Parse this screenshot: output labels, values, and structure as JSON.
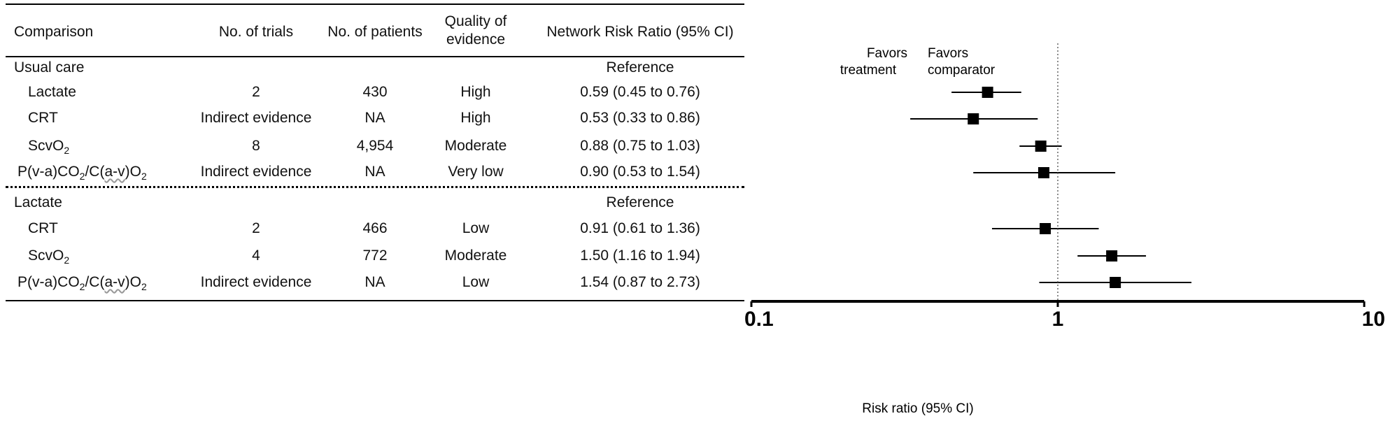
{
  "table": {
    "headers": {
      "comparison": "Comparison",
      "trials": "No. of trials",
      "patients": "No. of patients",
      "quality_line1": "Quality of",
      "quality_line2": "evidence",
      "rr": "Network Risk Ratio (95% CI)"
    },
    "groups": [
      {
        "reference_label": "Usual care",
        "reference_value": "Reference",
        "rows": [
          {
            "label": "Lactate",
            "trials": "2",
            "patients": "430",
            "quality": "High",
            "rr": "0.59 (0.45 to 0.76)"
          },
          {
            "label": "CRT",
            "trials": "Indirect evidence",
            "patients": "NA",
            "quality": "High",
            "rr": "0.53 (0.33 to 0.86)"
          },
          {
            "label_pre": "ScvO",
            "label_sub": "2",
            "trials": "8",
            "patients": "4,954",
            "quality": "Moderate",
            "rr": "0.88 (0.75 to 1.03)"
          },
          {
            "label_a": "P(v-a)CO",
            "label_a_sub": "2",
            "label_b": "/C(",
            "label_c": "a-v",
            "label_d": ")O",
            "label_d_sub": "2",
            "trials": "Indirect evidence",
            "patients": "NA",
            "quality": "Very low",
            "rr": "0.90 (0.53 to 1.54)"
          }
        ]
      },
      {
        "reference_label": "Lactate",
        "reference_value": "Reference",
        "rows": [
          {
            "label": "CRT",
            "trials": "2",
            "patients": "466",
            "quality": "Low",
            "rr": "0.91 (0.61 to 1.36)"
          },
          {
            "label_pre": "ScvO",
            "label_sub": "2",
            "trials": "4",
            "patients": "772",
            "quality": "Moderate",
            "rr": "1.50 (1.16 to 1.94)"
          },
          {
            "label_a": "P(v-a)CO",
            "label_a_sub": "2",
            "label_b": "/C(",
            "label_c": "a-v",
            "label_d": ")O",
            "label_d_sub": "2",
            "trials": "Indirect evidence",
            "patients": "NA",
            "quality": "Low",
            "rr": "1.54 (0.87 to 2.73)"
          }
        ]
      }
    ]
  },
  "chart_data": {
    "type": "scatter",
    "xscale": "log",
    "xlim": [
      0.1,
      10
    ],
    "xticks": [
      "0.1",
      "1",
      "10"
    ],
    "xlabel": "Risk ratio (95% CI)",
    "reference_line": 1,
    "annotations": {
      "left_line1": "Favors",
      "left_line2": "treatment",
      "right_line1": "Favors",
      "right_line2": "comparator"
    },
    "points": [
      {
        "estimate": 0.59,
        "lower": 0.45,
        "upper": 0.76
      },
      {
        "estimate": 0.53,
        "lower": 0.33,
        "upper": 0.86
      },
      {
        "estimate": 0.88,
        "lower": 0.75,
        "upper": 1.03
      },
      {
        "estimate": 0.9,
        "lower": 0.53,
        "upper": 1.54
      },
      {
        "estimate": 0.91,
        "lower": 0.61,
        "upper": 1.36
      },
      {
        "estimate": 1.5,
        "lower": 1.16,
        "upper": 1.94
      },
      {
        "estimate": 1.54,
        "lower": 0.87,
        "upper": 2.73
      }
    ]
  }
}
